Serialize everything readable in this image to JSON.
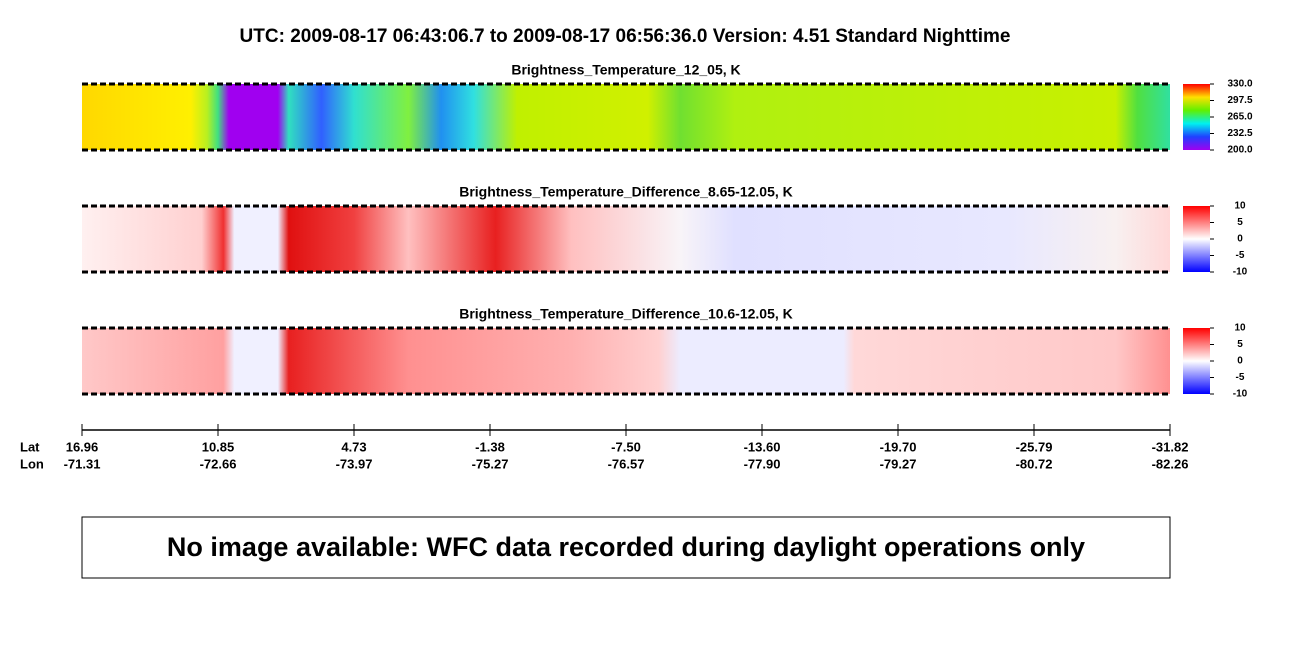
{
  "header": {
    "title": "UTC:  2009-08-17   06:43:06.7  to  2009-08-17   06:56:36.0    Version: 4.51  Standard Nighttime"
  },
  "panels": [
    {
      "title": "Brightness_Temperature_12_05, K",
      "ticks": [
        {
          "value": 330,
          "label": "330.0"
        },
        297.5,
        {
          "value": 265,
          "label": "265.0"
        },
        232.5,
        {
          "value": 200,
          "label": "200.0"
        }
      ]
    },
    {
      "title": "Brightness_Temperature_Difference_8.65-12.05, K",
      "ticks": [
        10,
        5,
        0,
        -5,
        -10
      ]
    },
    {
      "title": "Brightness_Temperature_Difference_10.6-12.05, K",
      "ticks": [
        10,
        5,
        0,
        -5,
        -10
      ]
    }
  ],
  "axis": {
    "lat_label": "Lat",
    "lon_label": "Lon",
    "lat": [
      16.96,
      10.85,
      4.73,
      -1.38,
      {
        "value": -7.5,
        "label": "-7.50"
      },
      {
        "value": -13.6,
        "label": "-13.60"
      },
      {
        "value": -19.7,
        "label": "-19.70"
      },
      -25.79,
      -31.82
    ],
    "lon": [
      -71.31,
      -72.66,
      -73.97,
      -75.27,
      -76.57,
      {
        "value": -77.9,
        "label": "-77.90"
      },
      -79.27,
      -80.72,
      -82.26
    ]
  },
  "notice": "No image available: WFC data recorded during daylight operations only"
}
